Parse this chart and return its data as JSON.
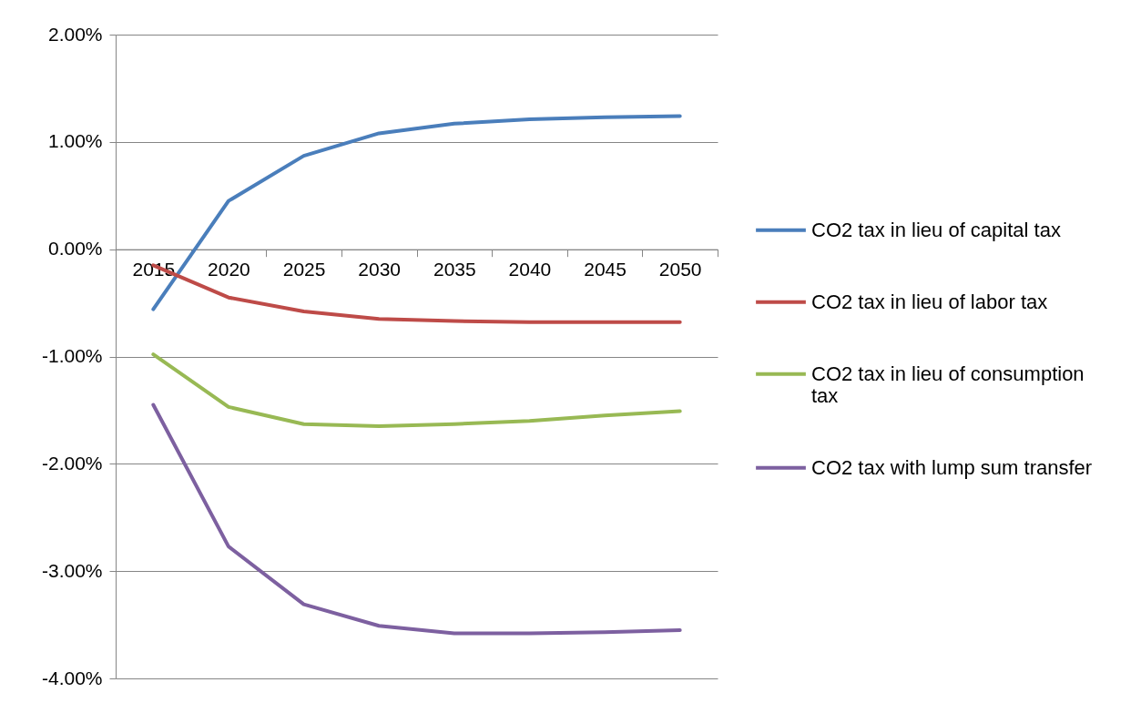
{
  "chart_data": {
    "type": "line",
    "categories": [
      "2015",
      "2020",
      "2025",
      "2030",
      "2035",
      "2040",
      "2045",
      "2050"
    ],
    "series": [
      {
        "name": "CO2 tax in lieu of capital tax",
        "color": "#4a7ebb",
        "values": [
          -0.56,
          0.45,
          0.87,
          1.08,
          1.17,
          1.21,
          1.23,
          1.24
        ]
      },
      {
        "name": "CO2 tax in lieu of labor tax",
        "color": "#be4b48",
        "values": [
          -0.15,
          -0.45,
          -0.58,
          -0.65,
          -0.67,
          -0.68,
          -0.68,
          -0.68
        ]
      },
      {
        "name": "CO2 tax in lieu of consumption tax",
        "color": "#98b954",
        "values": [
          -0.98,
          -1.47,
          -1.63,
          -1.65,
          -1.63,
          -1.6,
          -1.55,
          -1.51
        ]
      },
      {
        "name": "CO2 tax with lump sum transfer",
        "color": "#7d60a0",
        "values": [
          -1.45,
          -2.77,
          -3.31,
          -3.51,
          -3.58,
          -3.58,
          -3.57,
          -3.55
        ]
      }
    ],
    "ylim": [
      -4,
      2
    ],
    "yticks": [
      {
        "value": -4,
        "label": "-4.00%"
      },
      {
        "value": -3,
        "label": "-3.00%"
      },
      {
        "value": -2,
        "label": "-2.00%"
      },
      {
        "value": -1,
        "label": "-1.00%"
      },
      {
        "value": 0,
        "label": "0.00%"
      },
      {
        "value": 1,
        "label": "1.00%"
      },
      {
        "value": 2,
        "label": "2.00%"
      }
    ],
    "grid": "y",
    "legend": "right"
  }
}
